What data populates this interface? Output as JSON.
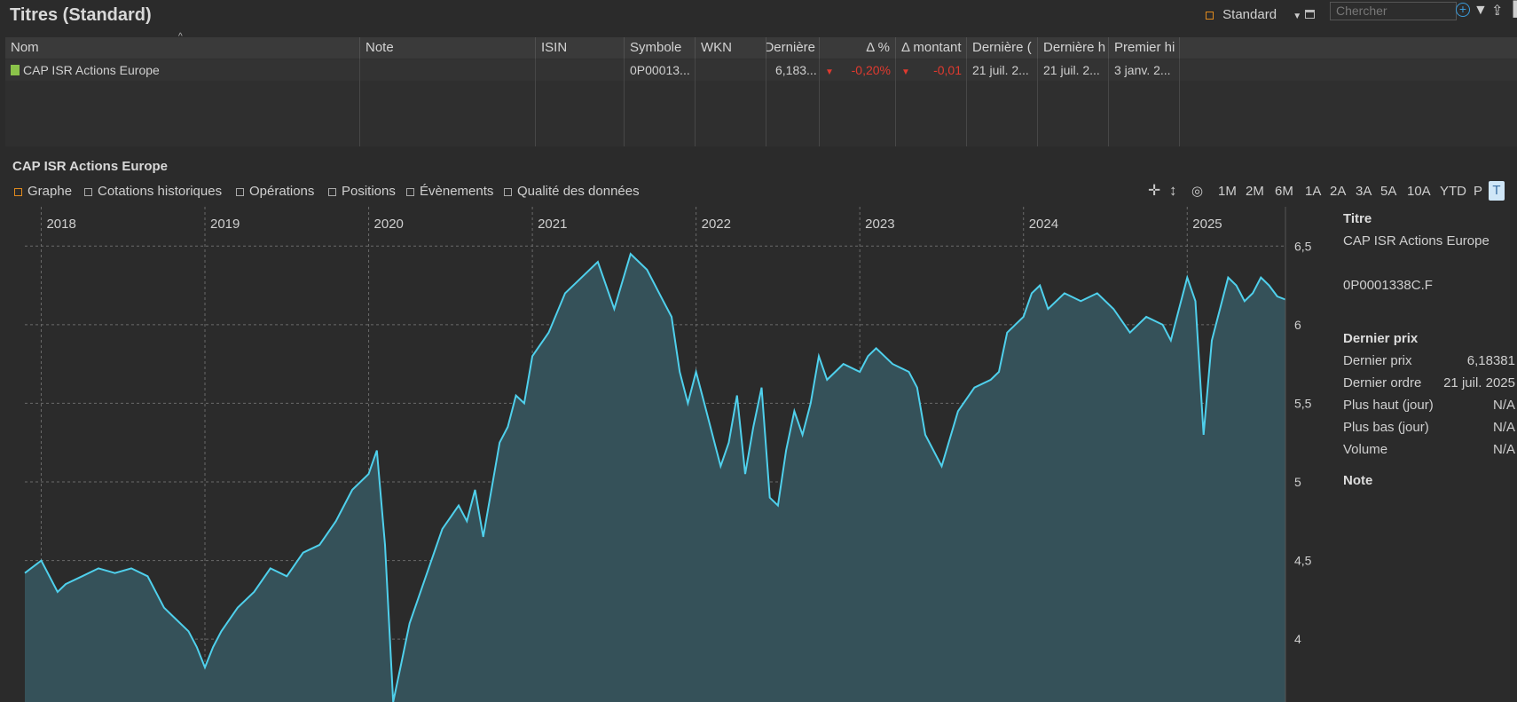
{
  "window": {
    "title": "Titres (Standard)"
  },
  "toolbar": {
    "view_label": "Standard",
    "search_placeholder": "Chercher"
  },
  "table": {
    "headers": [
      "Nom",
      "Note",
      "ISIN",
      "Symbole",
      "WKN",
      "Dernière",
      "Δ %",
      "Δ montant",
      "Dernière (",
      "Dernière h",
      "Premier hi"
    ],
    "row": {
      "name": "CAP ISR Actions Europe",
      "note": "",
      "isin": "",
      "symbol": "0P00013...",
      "wkn": "",
      "last": "6,183...",
      "delta_pct": "-0,20%",
      "delta_amt": "-0,01",
      "last_date": "21 juil. 2...",
      "last_h": "21 juil. 2...",
      "first_h": "3 janv. 2..."
    }
  },
  "detail": {
    "title": "CAP ISR Actions Europe",
    "tabs": [
      "Graphe",
      "Cotations historiques",
      "Opérations",
      "Positions",
      "Évènements",
      "Qualité des données"
    ],
    "ranges": [
      "1M",
      "2M",
      "6M",
      "1A",
      "2A",
      "3A",
      "5A",
      "10A",
      "YTD",
      "P",
      "T"
    ]
  },
  "side": {
    "titre_heading": "Titre",
    "name": "CAP ISR Actions Europe",
    "symbol": "0P0001338C.F",
    "price_heading": "Dernier prix",
    "rows": [
      {
        "label": "Dernier prix",
        "value": "6,18381"
      },
      {
        "label": "Dernier ordre",
        "value": "21 juil. 2025"
      },
      {
        "label": "Plus haut (jour)",
        "value": "N/A"
      },
      {
        "label": "Plus bas (jour)",
        "value": "N/A"
      },
      {
        "label": "Volume",
        "value": "N/A"
      }
    ],
    "note_heading": "Note"
  },
  "chart_data": {
    "type": "area",
    "years": [
      "2018",
      "2019",
      "2020",
      "2021",
      "2022",
      "2023",
      "2024",
      "2025"
    ],
    "y_ticks": [
      "6,5",
      "6",
      "5,5",
      "5",
      "4,5",
      "4"
    ],
    "ylim": [
      3.6,
      6.75
    ],
    "xlim": [
      2017.9,
      2025.6
    ],
    "grid": true,
    "line_color": "#4fd0ec",
    "fill_color": "#355159",
    "x": [
      2017.9,
      2018.0,
      2018.1,
      2018.15,
      2018.25,
      2018.35,
      2018.45,
      2018.55,
      2018.65,
      2018.75,
      2018.8,
      2018.9,
      2018.95,
      2019.0,
      2019.05,
      2019.1,
      2019.2,
      2019.3,
      2019.4,
      2019.5,
      2019.6,
      2019.7,
      2019.8,
      2019.9,
      2020.0,
      2020.05,
      2020.1,
      2020.15,
      2020.2,
      2020.25,
      2020.35,
      2020.45,
      2020.55,
      2020.6,
      2020.65,
      2020.7,
      2020.8,
      2020.85,
      2020.9,
      2020.95,
      2021.0,
      2021.1,
      2021.2,
      2021.3,
      2021.4,
      2021.5,
      2021.6,
      2021.7,
      2021.8,
      2021.85,
      2021.9,
      2021.95,
      2022.0,
      2022.05,
      2022.1,
      2022.15,
      2022.2,
      2022.25,
      2022.3,
      2022.35,
      2022.4,
      2022.45,
      2022.5,
      2022.55,
      2022.6,
      2022.65,
      2022.7,
      2022.75,
      2022.8,
      2022.9,
      2023.0,
      2023.05,
      2023.1,
      2023.2,
      2023.3,
      2023.35,
      2023.4,
      2023.5,
      2023.6,
      2023.7,
      2023.8,
      2023.85,
      2023.9,
      2024.0,
      2024.05,
      2024.1,
      2024.15,
      2024.25,
      2024.35,
      2024.45,
      2024.55,
      2024.65,
      2024.75,
      2024.85,
      2024.9,
      2024.95,
      2025.0,
      2025.05,
      2025.1,
      2025.15,
      2025.2,
      2025.25,
      2025.3,
      2025.35,
      2025.4,
      2025.45,
      2025.5,
      2025.55,
      2025.6
    ],
    "y": [
      4.42,
      4.5,
      4.3,
      4.35,
      4.4,
      4.45,
      4.42,
      4.45,
      4.4,
      4.2,
      4.15,
      4.05,
      3.95,
      3.82,
      3.95,
      4.05,
      4.2,
      4.3,
      4.45,
      4.4,
      4.55,
      4.6,
      4.75,
      4.95,
      5.05,
      5.2,
      4.6,
      3.6,
      3.85,
      4.1,
      4.4,
      4.7,
      4.85,
      4.75,
      4.95,
      4.65,
      5.25,
      5.35,
      5.55,
      5.5,
      5.8,
      5.95,
      6.2,
      6.3,
      6.4,
      6.1,
      6.45,
      6.35,
      6.15,
      6.05,
      5.7,
      5.5,
      5.7,
      5.5,
      5.3,
      5.1,
      5.25,
      5.55,
      5.05,
      5.35,
      5.6,
      4.9,
      4.85,
      5.2,
      5.45,
      5.3,
      5.5,
      5.8,
      5.65,
      5.75,
      5.7,
      5.8,
      5.85,
      5.75,
      5.7,
      5.6,
      5.3,
      5.1,
      5.45,
      5.6,
      5.65,
      5.7,
      5.95,
      6.05,
      6.2,
      6.25,
      6.1,
      6.2,
      6.15,
      6.2,
      6.1,
      5.95,
      6.05,
      6.0,
      5.9,
      6.1,
      6.3,
      6.15,
      5.3,
      5.9,
      6.1,
      6.3,
      6.25,
      6.15,
      6.2,
      6.3,
      6.25,
      6.18,
      6.16
    ]
  }
}
